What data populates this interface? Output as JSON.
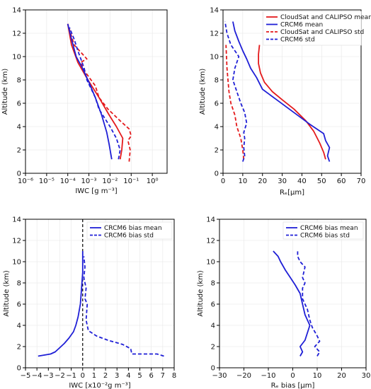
{
  "chart_data": [
    {
      "type": "line",
      "xlabel": "IWC [g m⁻³]",
      "ylabel": "Altitude (km)",
      "xscale": "log",
      "xlim": [
        1e-06,
        5
      ],
      "ylim": [
        0,
        14
      ],
      "xticks": [
        1e-06,
        1e-05,
        0.0001,
        0.001,
        0.01,
        0.1,
        1
      ],
      "xticklabels": [
        "10⁻⁶",
        "10⁻⁵",
        "10⁻⁴",
        "10⁻³",
        "10⁻²",
        "10⁻¹",
        "10⁰"
      ],
      "yticks": [
        0,
        2,
        4,
        6,
        8,
        10,
        12,
        14
      ],
      "yticklabels": [
        "0",
        "2",
        "4",
        "6",
        "8",
        "10",
        "12",
        "14"
      ],
      "grid": true,
      "series": [
        {
          "color": "#e41a1c",
          "dash": "solid",
          "x": [
            0.03,
            0.036,
            0.04,
            0.02,
            0.009,
            0.003,
            0.0009,
            0.0003,
            0.00015,
            0.0001
          ],
          "y": [
            1.2,
            2,
            3,
            4,
            5,
            6.5,
            8,
            9.5,
            11,
            12.8
          ]
        },
        {
          "color": "#e41a1c",
          "dash": "dashed",
          "x": [
            0.08,
            0.09,
            0.07,
            0.1,
            0.08,
            0.03,
            0.008,
            0.003,
            0.002,
            0.0006,
            0.0004,
            0.0008,
            0.0002,
            0.0001
          ],
          "y": [
            1,
            2,
            2.8,
            3.2,
            3.8,
            4.5,
            5.5,
            6.5,
            7.5,
            8.8,
            9.5,
            9.8,
            11,
            12.8
          ]
        },
        {
          "color": "#1f1fd6",
          "dash": "solid",
          "x": [
            0.012,
            0.009,
            0.007,
            0.004,
            0.002,
            0.001,
            0.0005,
            0.00025,
            0.00015,
            0.0001
          ],
          "y": [
            1.2,
            2.5,
            3.5,
            5,
            6.5,
            7.8,
            9,
            10,
            11.5,
            12.8
          ]
        },
        {
          "color": "#1f1fd6",
          "dash": "dashed",
          "x": [
            0.025,
            0.03,
            0.02,
            0.01,
            0.003,
            0.002,
            0.0008,
            0.0006,
            0.0003,
            0.0002,
            0.00012
          ],
          "y": [
            1.2,
            2,
            3,
            4,
            5.5,
            6.5,
            8,
            9,
            10.5,
            11.5,
            12.5
          ]
        }
      ]
    },
    {
      "type": "line",
      "xlabel": "Rₑ[μm]",
      "ylabel": "Altitude (km)",
      "xlim": [
        0,
        70
      ],
      "ylim": [
        0,
        14
      ],
      "xticks": [
        0,
        10,
        20,
        30,
        40,
        50,
        60,
        70
      ],
      "xticklabels": [
        "0",
        "10",
        "20",
        "30",
        "40",
        "50",
        "60",
        "70"
      ],
      "yticks": [
        0,
        2,
        4,
        6,
        8,
        10,
        12,
        14
      ],
      "yticklabels": [
        "0",
        "2",
        "4",
        "6",
        "8",
        "10",
        "12",
        "14"
      ],
      "grid": true,
      "legend": "top-right",
      "series": [
        {
          "name": "CloudSat and CALIPSO mean",
          "color": "#e41a1c",
          "dash": "solid",
          "x": [
            52,
            51,
            49,
            46,
            42,
            36,
            30,
            25,
            21,
            19,
            18,
            18,
            18.5
          ],
          "y": [
            1.2,
            1.8,
            2.6,
            3.6,
            4.5,
            5.5,
            6.3,
            7,
            7.8,
            8.6,
            9.4,
            10.2,
            11
          ]
        },
        {
          "name": "CRCM6 mean",
          "color": "#1f1fd6",
          "dash": "solid",
          "x": [
            54,
            53,
            54,
            52,
            51,
            44,
            36,
            28,
            20,
            17,
            14,
            12,
            10,
            8,
            6,
            5
          ],
          "y": [
            1,
            1.5,
            2.2,
            2.8,
            3.4,
            4.2,
            5.2,
            6.2,
            7.2,
            8.2,
            9,
            9.8,
            10.5,
            11.3,
            12.2,
            13
          ]
        },
        {
          "name": "CloudSat and CALIPSO std",
          "color": "#e41a1c",
          "dash": "dashed",
          "x": [
            10.5,
            10,
            9,
            7,
            6,
            4,
            3,
            2.5,
            2,
            1.5
          ],
          "y": [
            1.2,
            2,
            3,
            4,
            5,
            6,
            7,
            8,
            9,
            11
          ]
        },
        {
          "name": "CRCM6 std",
          "color": "#1f1fd6",
          "dash": "dashed",
          "x": [
            10,
            11,
            10.5,
            11,
            10.5,
            12,
            11,
            9,
            7,
            5,
            6,
            8,
            4,
            2,
            1
          ],
          "y": [
            1,
            1.5,
            2.2,
            3,
            3.5,
            4.3,
            5.2,
            6,
            7,
            8,
            9,
            10,
            11,
            12,
            13
          ]
        }
      ]
    },
    {
      "type": "line",
      "xlabel": "IWC [x10⁻²g m⁻³]",
      "ylabel": "Altitude (km)",
      "xlim": [
        -5,
        8
      ],
      "ylim": [
        0,
        14
      ],
      "xticks": [
        -5,
        -4,
        -3,
        -2,
        -1,
        0,
        1,
        2,
        3,
        4,
        5,
        6,
        7,
        8
      ],
      "xticklabels": [
        "−5",
        "−4",
        "−3",
        "−2",
        "−1",
        "0",
        "1",
        "2",
        "3",
        "4",
        "5",
        "6",
        "7",
        "8"
      ],
      "yticks": [
        0,
        2,
        4,
        6,
        8,
        10,
        12,
        14
      ],
      "yticklabels": [
        "0",
        "2",
        "4",
        "6",
        "8",
        "10",
        "12",
        "14"
      ],
      "grid": true,
      "legend": "top-right",
      "vline": 0,
      "series": [
        {
          "name": "CRCM6 bias mean",
          "color": "#1f1fd6",
          "dash": "solid",
          "x": [
            -3.9,
            -2.8,
            -2.4,
            -2,
            -1.6,
            -1.2,
            -0.8,
            -0.6,
            -0.4,
            -0.2,
            -0.1,
            0,
            0
          ],
          "y": [
            1.1,
            1.3,
            1.5,
            1.9,
            2.3,
            2.8,
            3.4,
            4,
            4.8,
            6,
            7.5,
            9,
            11
          ]
        },
        {
          "name": "CRCM6 bias std",
          "color": "#1f1fd6",
          "dash": "dashed",
          "x": [
            7.1,
            6.5,
            4.3,
            4.2,
            3.5,
            2.2,
            1.2,
            0.5,
            0.3,
            0.4,
            0.2,
            0.3,
            0.1,
            0.2,
            0.1
          ],
          "y": [
            1.1,
            1.3,
            1.3,
            1.8,
            2.2,
            2.6,
            3,
            3.5,
            4.5,
            6,
            6.5,
            7.5,
            8.5,
            9.5,
            10.5
          ]
        }
      ]
    },
    {
      "type": "line",
      "xlabel": "Rₑ bias [μm]",
      "ylabel": "Altitude (km)",
      "xlim": [
        -30,
        30
      ],
      "ylim": [
        0,
        14
      ],
      "xticks": [
        -30,
        -20,
        -10,
        0,
        10,
        20,
        30
      ],
      "xticklabels": [
        "−30",
        "−20",
        "−10",
        "0",
        "10",
        "20",
        "30"
      ],
      "yticks": [
        0,
        2,
        4,
        6,
        8,
        10,
        12,
        14
      ],
      "yticklabels": [
        "0",
        "2",
        "4",
        "6",
        "8",
        "10",
        "12",
        "14"
      ],
      "grid": true,
      "legend": "top-right",
      "series": [
        {
          "name": "CRCM6 bias mean",
          "color": "#1f1fd6",
          "dash": "solid",
          "x": [
            3,
            4,
            3,
            5,
            6,
            7,
            5,
            4,
            3,
            1,
            -1,
            -3,
            -5,
            -6,
            -8
          ],
          "y": [
            1.1,
            1.5,
            2,
            2.6,
            3.3,
            4,
            5,
            6,
            7,
            7.8,
            8.5,
            9.2,
            10,
            10.5,
            11
          ]
        },
        {
          "name": "CRCM6 bias std",
          "color": "#1f1fd6",
          "dash": "dashed",
          "x": [
            10,
            11,
            9,
            11,
            10,
            8,
            7,
            6,
            5,
            4,
            4,
            5,
            4,
            5,
            3,
            2,
            2
          ],
          "y": [
            1.1,
            1.5,
            2,
            2.5,
            3,
            3.8,
            4.5,
            5.5,
            6,
            6.5,
            7.5,
            8,
            8.5,
            9.5,
            10,
            10.5,
            11
          ]
        }
      ]
    }
  ]
}
